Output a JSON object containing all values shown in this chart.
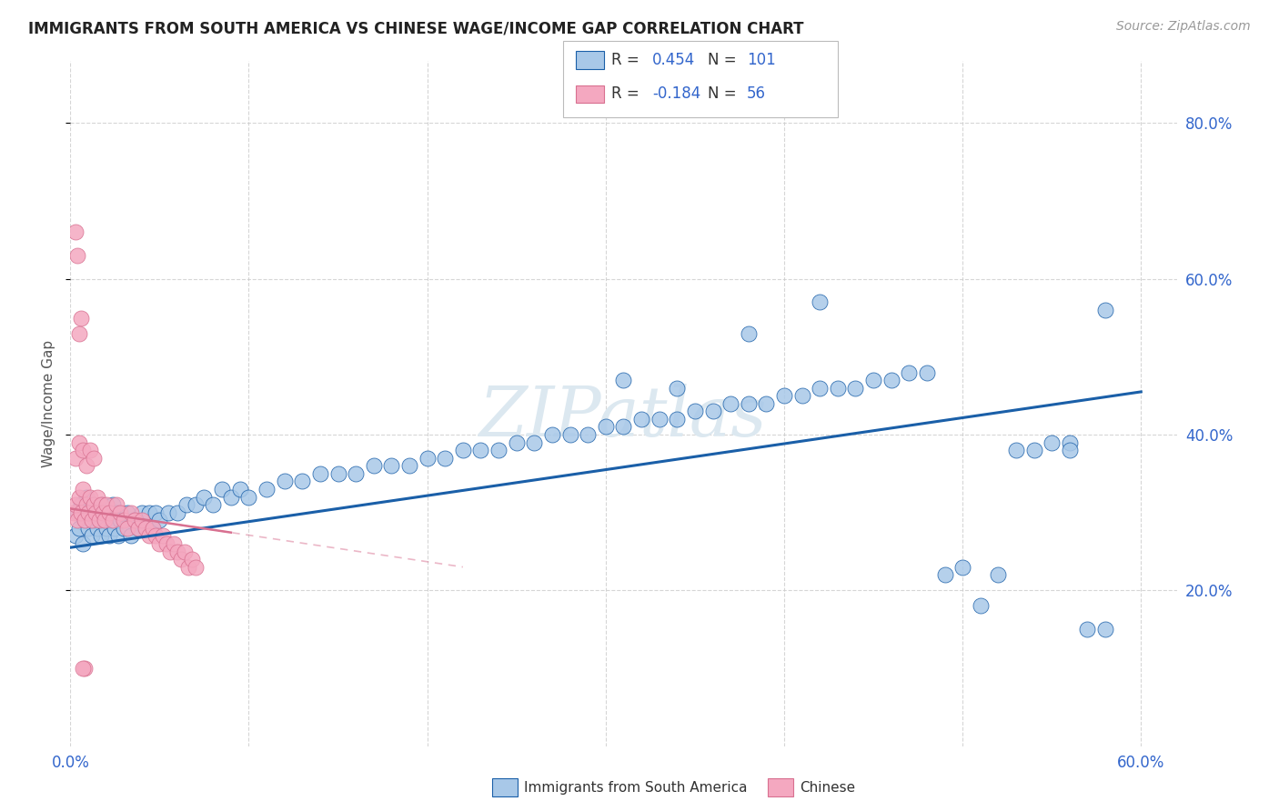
{
  "title": "IMMIGRANTS FROM SOUTH AMERICA VS CHINESE WAGE/INCOME GAP CORRELATION CHART",
  "source": "Source: ZipAtlas.com",
  "xlabel_blue": "Immigrants from South America",
  "xlabel_pink": "Chinese",
  "ylabel": "Wage/Income Gap",
  "R_blue": 0.454,
  "N_blue": 101,
  "R_pink": -0.184,
  "N_pink": 56,
  "xlim": [
    0.0,
    0.62
  ],
  "ylim": [
    0.0,
    0.88
  ],
  "blue_scatter_x": [
    0.003,
    0.004,
    0.005,
    0.006,
    0.007,
    0.008,
    0.009,
    0.01,
    0.011,
    0.012,
    0.013,
    0.014,
    0.015,
    0.016,
    0.017,
    0.018,
    0.019,
    0.02,
    0.021,
    0.022,
    0.023,
    0.024,
    0.025,
    0.026,
    0.027,
    0.028,
    0.03,
    0.032,
    0.034,
    0.036,
    0.038,
    0.04,
    0.042,
    0.044,
    0.046,
    0.048,
    0.05,
    0.055,
    0.06,
    0.065,
    0.07,
    0.075,
    0.08,
    0.085,
    0.09,
    0.095,
    0.1,
    0.11,
    0.12,
    0.13,
    0.14,
    0.15,
    0.16,
    0.17,
    0.18,
    0.19,
    0.2,
    0.21,
    0.22,
    0.23,
    0.24,
    0.25,
    0.26,
    0.27,
    0.28,
    0.29,
    0.3,
    0.31,
    0.32,
    0.33,
    0.34,
    0.35,
    0.36,
    0.37,
    0.38,
    0.39,
    0.4,
    0.41,
    0.42,
    0.43,
    0.44,
    0.45,
    0.46,
    0.47,
    0.48,
    0.49,
    0.5,
    0.51,
    0.52,
    0.53,
    0.54,
    0.55,
    0.56,
    0.57,
    0.58,
    0.38,
    0.42,
    0.31,
    0.34,
    0.58,
    0.56
  ],
  "blue_scatter_y": [
    0.27,
    0.3,
    0.28,
    0.31,
    0.26,
    0.29,
    0.32,
    0.28,
    0.3,
    0.27,
    0.31,
    0.29,
    0.28,
    0.3,
    0.27,
    0.31,
    0.29,
    0.28,
    0.3,
    0.27,
    0.29,
    0.31,
    0.28,
    0.3,
    0.27,
    0.29,
    0.28,
    0.3,
    0.27,
    0.29,
    0.28,
    0.3,
    0.28,
    0.3,
    0.28,
    0.3,
    0.29,
    0.3,
    0.3,
    0.31,
    0.31,
    0.32,
    0.31,
    0.33,
    0.32,
    0.33,
    0.32,
    0.33,
    0.34,
    0.34,
    0.35,
    0.35,
    0.35,
    0.36,
    0.36,
    0.36,
    0.37,
    0.37,
    0.38,
    0.38,
    0.38,
    0.39,
    0.39,
    0.4,
    0.4,
    0.4,
    0.41,
    0.41,
    0.42,
    0.42,
    0.42,
    0.43,
    0.43,
    0.44,
    0.44,
    0.44,
    0.45,
    0.45,
    0.46,
    0.46,
    0.46,
    0.47,
    0.47,
    0.48,
    0.48,
    0.22,
    0.23,
    0.18,
    0.22,
    0.38,
    0.38,
    0.39,
    0.39,
    0.15,
    0.15,
    0.53,
    0.57,
    0.47,
    0.46,
    0.56,
    0.38
  ],
  "pink_scatter_x": [
    0.002,
    0.003,
    0.004,
    0.005,
    0.006,
    0.007,
    0.008,
    0.009,
    0.01,
    0.011,
    0.012,
    0.013,
    0.014,
    0.015,
    0.016,
    0.017,
    0.018,
    0.019,
    0.02,
    0.022,
    0.024,
    0.026,
    0.028,
    0.03,
    0.032,
    0.034,
    0.036,
    0.038,
    0.04,
    0.042,
    0.044,
    0.046,
    0.048,
    0.05,
    0.052,
    0.054,
    0.056,
    0.058,
    0.06,
    0.062,
    0.064,
    0.066,
    0.068,
    0.07,
    0.003,
    0.005,
    0.007,
    0.009,
    0.011,
    0.013,
    0.004,
    0.006,
    0.008,
    0.003,
    0.005,
    0.007
  ],
  "pink_scatter_y": [
    0.3,
    0.31,
    0.29,
    0.32,
    0.3,
    0.33,
    0.29,
    0.31,
    0.3,
    0.32,
    0.29,
    0.31,
    0.3,
    0.32,
    0.29,
    0.31,
    0.3,
    0.29,
    0.31,
    0.3,
    0.29,
    0.31,
    0.3,
    0.29,
    0.28,
    0.3,
    0.29,
    0.28,
    0.29,
    0.28,
    0.27,
    0.28,
    0.27,
    0.26,
    0.27,
    0.26,
    0.25,
    0.26,
    0.25,
    0.24,
    0.25,
    0.23,
    0.24,
    0.23,
    0.37,
    0.39,
    0.38,
    0.36,
    0.38,
    0.37,
    0.63,
    0.55,
    0.1,
    0.66,
    0.53,
    0.1
  ],
  "blue_color": "#a8c8e8",
  "pink_color": "#f4a8c0",
  "blue_line_color": "#1a5fa8",
  "pink_line_color": "#d87090",
  "watermark": "ZIPatlas",
  "watermark_color": "#dce8f0",
  "background_color": "#ffffff",
  "blue_line_x0": 0.0,
  "blue_line_y0": 0.255,
  "blue_line_x1": 0.6,
  "blue_line_y1": 0.455,
  "pink_line_x0": 0.0,
  "pink_line_y0": 0.305,
  "pink_line_x1": 0.22,
  "pink_line_y1": 0.23
}
